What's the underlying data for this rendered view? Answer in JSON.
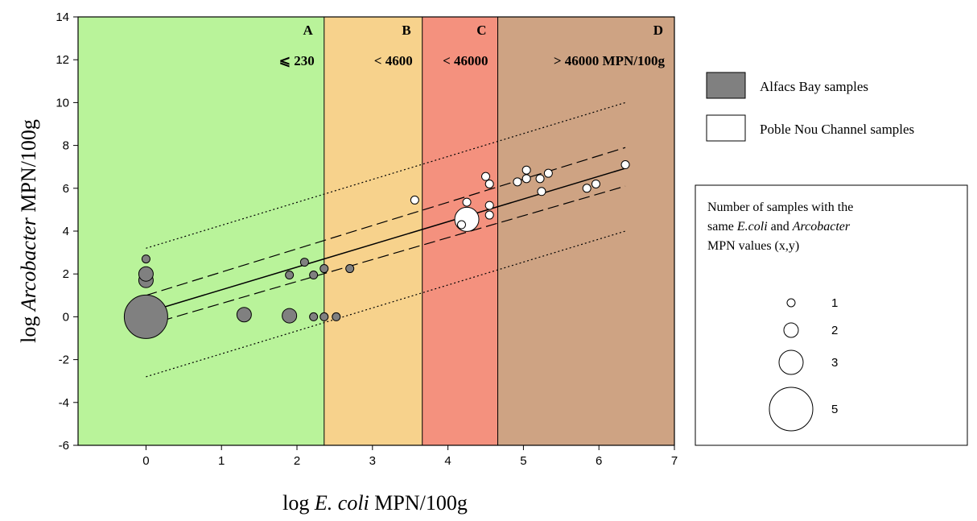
{
  "chart_data": {
    "type": "scatter",
    "xlabel": {
      "prefix": "log ",
      "italic": "E. coli",
      "suffix": " MPN/100g"
    },
    "ylabel": {
      "prefix": "log ",
      "italic": "Arcobacter",
      "suffix": " MPN/100g"
    },
    "xlim": [
      -0.9,
      7
    ],
    "ylim": [
      -6,
      14
    ],
    "x_ticks": [
      0,
      1,
      2,
      3,
      4,
      5,
      6,
      7
    ],
    "y_ticks": [
      -6,
      -4,
      -2,
      0,
      2,
      4,
      6,
      8,
      10,
      12,
      14
    ],
    "zones": [
      {
        "letter": "A",
        "label": "⩽ 230",
        "x_from": -0.9,
        "x_to": 2.36,
        "color": "#b9f39a"
      },
      {
        "letter": "B",
        "label": "< 4600",
        "x_from": 2.36,
        "x_to": 3.66,
        "color": "#f7d28c"
      },
      {
        "letter": "C",
        "label": "< 46000",
        "x_from": 3.66,
        "x_to": 4.66,
        "color": "#f4917e"
      },
      {
        "letter": "D",
        "label": "> 46000 MPN/100g",
        "x_from": 4.66,
        "x_to": 7,
        "color": "#cea383"
      }
    ],
    "series": [
      {
        "name": "Alfacs Bay samples",
        "fill": "#808080",
        "points": [
          {
            "x": 0,
            "y": 0,
            "n": 5
          },
          {
            "x": 0,
            "y": 1.7,
            "n": 2
          },
          {
            "x": 0,
            "y": 2.0,
            "n": 2
          },
          {
            "x": 0,
            "y": 2.7,
            "n": 1
          },
          {
            "x": 1.3,
            "y": 0.1,
            "n": 2
          },
          {
            "x": 1.9,
            "y": 0.05,
            "n": 2
          },
          {
            "x": 1.9,
            "y": 1.95,
            "n": 1
          },
          {
            "x": 2.1,
            "y": 2.55,
            "n": 1
          },
          {
            "x": 2.22,
            "y": 1.95,
            "n": 1
          },
          {
            "x": 2.22,
            "y": 0.0,
            "n": 1
          },
          {
            "x": 2.36,
            "y": 0.0,
            "n": 1
          },
          {
            "x": 2.36,
            "y": 2.25,
            "n": 1
          },
          {
            "x": 2.52,
            "y": 0.0,
            "n": 1
          },
          {
            "x": 2.7,
            "y": 2.25,
            "n": 1
          }
        ]
      },
      {
        "name": "Poble Nou Channel samples",
        "fill": "#ffffff",
        "points": [
          {
            "x": 3.56,
            "y": 5.45,
            "n": 1
          },
          {
            "x": 4.25,
            "y": 4.55,
            "n": 3
          },
          {
            "x": 4.18,
            "y": 4.3,
            "n": 1
          },
          {
            "x": 4.25,
            "y": 5.35,
            "n": 1
          },
          {
            "x": 4.5,
            "y": 6.55,
            "n": 1
          },
          {
            "x": 4.55,
            "y": 6.2,
            "n": 1
          },
          {
            "x": 4.55,
            "y": 5.2,
            "n": 1
          },
          {
            "x": 4.55,
            "y": 4.75,
            "n": 1
          },
          {
            "x": 4.92,
            "y": 6.3,
            "n": 1
          },
          {
            "x": 5.04,
            "y": 6.85,
            "n": 1
          },
          {
            "x": 5.04,
            "y": 6.45,
            "n": 1
          },
          {
            "x": 5.22,
            "y": 6.45,
            "n": 1
          },
          {
            "x": 5.24,
            "y": 5.85,
            "n": 1
          },
          {
            "x": 5.33,
            "y": 6.7,
            "n": 1
          },
          {
            "x": 5.84,
            "y": 6.0,
            "n": 1
          },
          {
            "x": 5.96,
            "y": 6.2,
            "n": 1
          },
          {
            "x": 6.35,
            "y": 7.1,
            "n": 1
          }
        ]
      }
    ],
    "regression": {
      "x_from": 0,
      "x_to": 6.35,
      "intercept": 0.2,
      "slope": 1.06
    },
    "confidence_band": {
      "lower": [
        [
          0,
          -0.4
        ],
        [
          6.35,
          6.1
        ]
      ],
      "upper": [
        [
          0,
          1.0
        ],
        [
          6.35,
          7.9
        ]
      ]
    },
    "prediction_band": {
      "lower": [
        [
          0,
          -2.8
        ],
        [
          6.35,
          4.0
        ]
      ],
      "upper": [
        [
          0,
          3.2
        ],
        [
          6.35,
          10.0
        ]
      ]
    },
    "legend": {
      "items": [
        "Alfacs Bay samples",
        "Poble Nou Channel samples"
      ],
      "size_title_line1": "Number of samples with the",
      "size_title_line2_pre": "same ",
      "size_title_line2_i1": "E.coli",
      "size_title_line2_mid": " and ",
      "size_title_line2_i2": "Arcobacter",
      "size_title_line3": "MPN values (x,y)",
      "sizes": [
        {
          "n": 1,
          "label": "1"
        },
        {
          "n": 2,
          "label": "2"
        },
        {
          "n": 3,
          "label": "3"
        },
        {
          "n": 5,
          "label": "5"
        }
      ]
    }
  }
}
